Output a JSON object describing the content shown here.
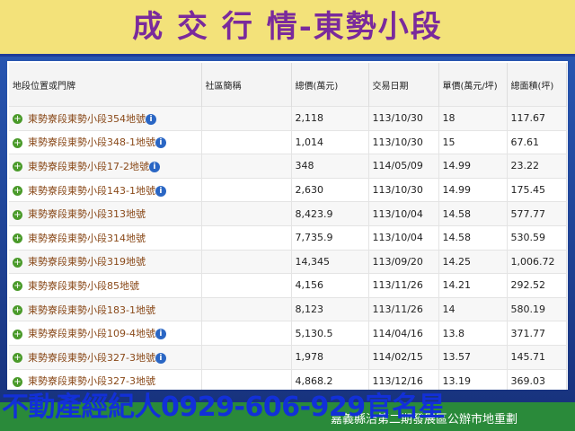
{
  "header": {
    "title": "成 交 行 情-東勢小段"
  },
  "table": {
    "columns": [
      "地段位置或門牌",
      "社區簡稱",
      "總價(萬元)",
      "交易日期",
      "單價(萬元/坪)",
      "總面積(坪)"
    ],
    "rows": [
      {
        "location": "東勢寮段東勢小段354地號",
        "total": "2,118",
        "date": "113/10/30",
        "unit_price": "18",
        "area": "117.67",
        "info_icon": true
      },
      {
        "location": "東勢寮段東勢小段348-1地號",
        "total": "1,014",
        "date": "113/10/30",
        "unit_price": "15",
        "area": "67.61",
        "info_icon": true
      },
      {
        "location": "東勢寮段東勢小段17-2地號",
        "total": "348",
        "date": "114/05/09",
        "unit_price": "14.99",
        "area": "23.22",
        "info_icon": true
      },
      {
        "location": "東勢寮段東勢小段143-1地號",
        "total": "2,630",
        "date": "113/10/30",
        "unit_price": "14.99",
        "area": "175.45",
        "info_icon": true
      },
      {
        "location": "東勢寮段東勢小段313地號",
        "total": "8,423.9",
        "date": "113/10/04",
        "unit_price": "14.58",
        "area": "577.77",
        "info_icon": false
      },
      {
        "location": "東勢寮段東勢小段314地號",
        "total": "7,735.9",
        "date": "113/10/04",
        "unit_price": "14.58",
        "area": "530.59",
        "info_icon": false
      },
      {
        "location": "東勢寮段東勢小段319地號",
        "total": "14,345",
        "date": "113/09/20",
        "unit_price": "14.25",
        "area": "1,006.72",
        "info_icon": false
      },
      {
        "location": "東勢寮段東勢小段85地號",
        "total": "4,156",
        "date": "113/11/26",
        "unit_price": "14.21",
        "area": "292.52",
        "info_icon": false
      },
      {
        "location": "東勢寮段東勢小段183-1地號",
        "total": "8,123",
        "date": "113/11/26",
        "unit_price": "14",
        "area": "580.19",
        "info_icon": false
      },
      {
        "location": "東勢寮段東勢小段109-4地號",
        "total": "5,130.5",
        "date": "114/04/16",
        "unit_price": "13.8",
        "area": "371.77",
        "info_icon": true
      },
      {
        "location": "東勢寮段東勢小段327-3地號",
        "total": "1,978",
        "date": "114/02/15",
        "unit_price": "13.57",
        "area": "145.71",
        "info_icon": true
      },
      {
        "location": "東勢寮段東勢小段327-3地號",
        "total": "4,868.2",
        "date": "113/12/16",
        "unit_price": "13.19",
        "area": "369.03",
        "info_icon": false
      }
    ]
  },
  "footer": {
    "overlay": "不動產經紀人0929-606-929官名星",
    "caption": "嘉義縣治第二期發展區公辦市地重劃"
  }
}
